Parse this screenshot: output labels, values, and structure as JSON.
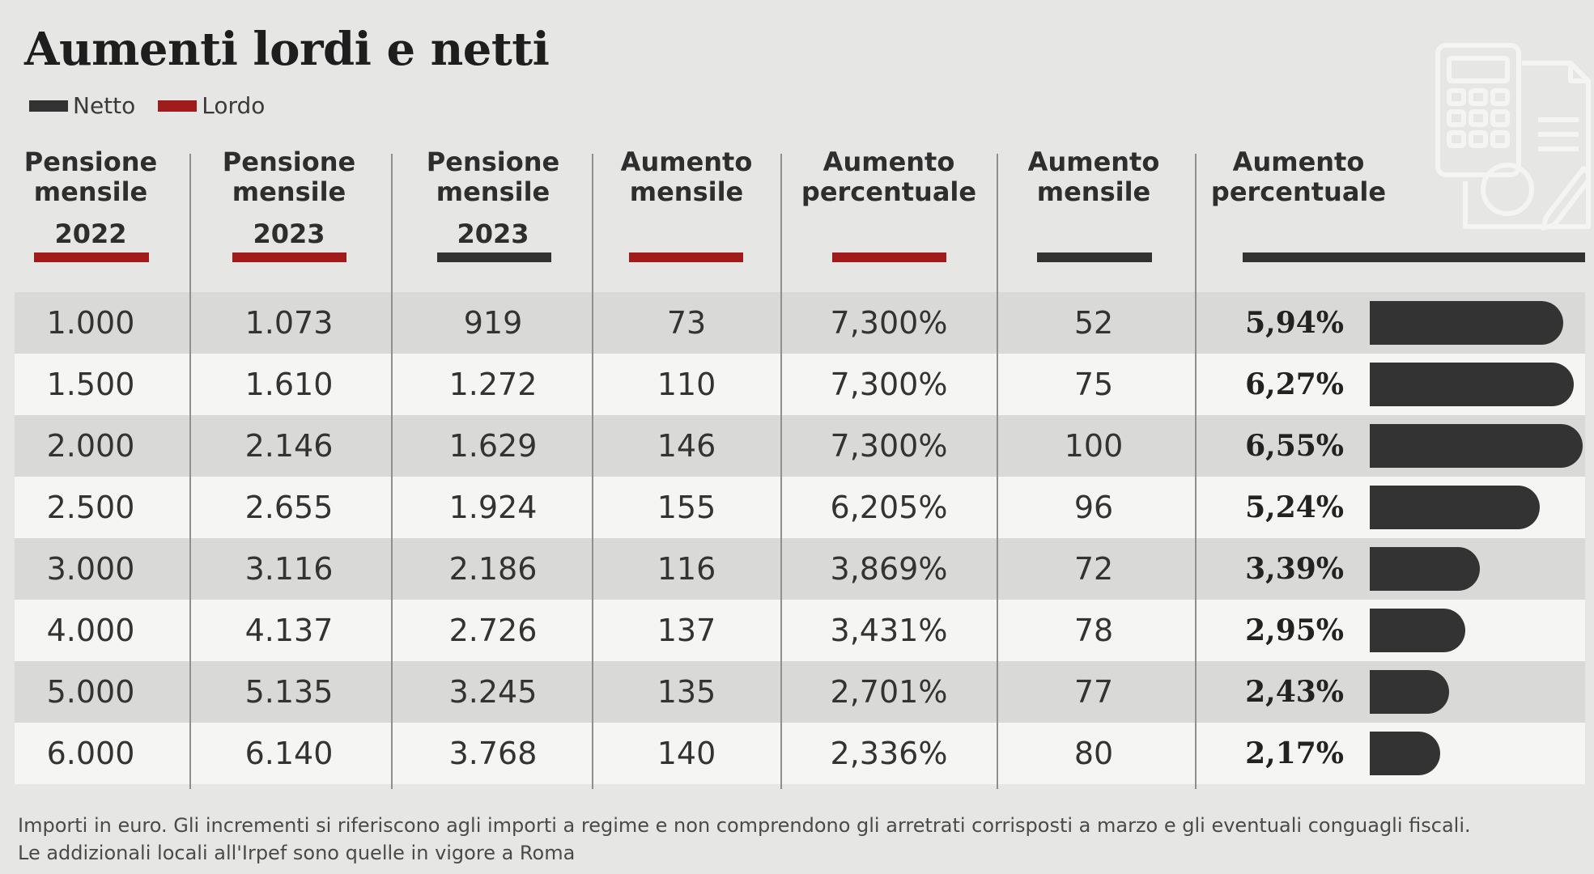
{
  "title": "Aumenti lordi e netti",
  "legend": [
    {
      "label": "Netto",
      "color": "#333333"
    },
    {
      "label": "Lordo",
      "color": "#a01c1c"
    }
  ],
  "columns": [
    {
      "lines": [
        "Pensione",
        "mensile"
      ],
      "year": "2022",
      "type": "Lordo"
    },
    {
      "lines": [
        "Pensione",
        "mensile"
      ],
      "year": "2023",
      "type": "Lordo"
    },
    {
      "lines": [
        "Pensione",
        "mensile"
      ],
      "year": "2023",
      "type": "Netto"
    },
    {
      "lines": [
        "Aumento",
        "mensile"
      ],
      "year": "",
      "type": "Lordo"
    },
    {
      "lines": [
        "Aumento",
        "percentuale"
      ],
      "year": "",
      "type": "Lordo"
    },
    {
      "lines": [
        "Aumento",
        "mensile"
      ],
      "year": "",
      "type": "Netto"
    },
    {
      "lines": [
        "Aumento",
        "percentuale"
      ],
      "year": "",
      "type": "Netto"
    }
  ],
  "rows": [
    [
      "1.000",
      "1.073",
      "919",
      "73",
      "7,300%",
      "52",
      "5,94%"
    ],
    [
      "1.500",
      "1.610",
      "1.272",
      "110",
      "7,300%",
      "75",
      "6,27%"
    ],
    [
      "2.000",
      "2.146",
      "1.629",
      "146",
      "7,300%",
      "100",
      "6,55%"
    ],
    [
      "2.500",
      "2.655",
      "1.924",
      "155",
      "6,205%",
      "96",
      "5,24%"
    ],
    [
      "3.000",
      "3.116",
      "2.186",
      "116",
      "3,869%",
      "72",
      "3,39%"
    ],
    [
      "4.000",
      "4.137",
      "2.726",
      "137",
      "3,431%",
      "78",
      "2,95%"
    ],
    [
      "5.000",
      "5.135",
      "3.245",
      "135",
      "2,701%",
      "77",
      "2,43%"
    ],
    [
      "6.000",
      "6.140",
      "3.768",
      "140",
      "2,336%",
      "80",
      "2,17%"
    ]
  ],
  "colors": {
    "netto": "#333333",
    "lordo": "#a01c1c",
    "row_shaded": "#d9dad7",
    "row_light": "#f5f5f3",
    "background": "#e6e7e4"
  },
  "chart_data": {
    "type": "table",
    "title": "Aumenti lordi e netti",
    "columns": [
      "Pensione mensile 2022",
      "Pensione mensile 2023",
      "Pensione mensile 2023",
      "Aumento mensile",
      "Aumento percentuale",
      "Aumento mensile",
      "Aumento percentuale"
    ],
    "bar_series": {
      "name": "Aumento percentuale",
      "values": [
        5.94,
        6.27,
        6.55,
        5.24,
        3.39,
        2.95,
        2.43,
        2.17
      ]
    }
  },
  "footnote": [
    "Importi in euro. Gli incrementi si riferiscono agli importi a regime e non comprendono gli arretrati corrisposti a marzo e gli eventuali conguagli fiscali.",
    "Le addizionali locali all'Irpef sono quelle in vigore a Roma"
  ]
}
